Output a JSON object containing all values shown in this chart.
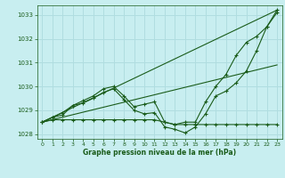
{
  "title": "Graphe pression niveau de la mer (hPa)",
  "bg_color": "#c8eef0",
  "grid_color": "#b0dde0",
  "line_color": "#1a5c1a",
  "xlim": [
    -0.5,
    23.5
  ],
  "ylim": [
    1027.8,
    1033.4
  ],
  "yticks": [
    1028,
    1029,
    1030,
    1031,
    1032,
    1033
  ],
  "xticks": [
    0,
    1,
    2,
    3,
    4,
    5,
    6,
    7,
    8,
    9,
    10,
    11,
    12,
    13,
    14,
    15,
    16,
    17,
    18,
    19,
    20,
    21,
    22,
    23
  ],
  "series": [
    {
      "x": [
        0,
        1,
        2,
        3,
        4,
        5,
        6,
        7,
        8,
        9,
        10,
        11,
        12,
        13,
        14,
        15,
        16,
        17,
        18,
        19,
        20,
        21,
        22,
        23
      ],
      "y": [
        1028.5,
        1028.6,
        1028.6,
        1028.6,
        1028.6,
        1028.6,
        1028.6,
        1028.6,
        1028.6,
        1028.6,
        1028.6,
        1028.6,
        1028.5,
        1028.4,
        1028.4,
        1028.4,
        1028.4,
        1028.4,
        1028.4,
        1028.4,
        1028.4,
        1028.4,
        1028.4,
        1028.4
      ],
      "marker": true
    },
    {
      "x": [
        0,
        1,
        2,
        3,
        4,
        5,
        6,
        7,
        8,
        9,
        10,
        11,
        12,
        13,
        14,
        15,
        16,
        17,
        18,
        19,
        20,
        21,
        22,
        23
      ],
      "y": [
        1028.5,
        1028.7,
        1028.8,
        1029.2,
        1029.3,
        1029.5,
        1029.75,
        1029.9,
        1029.45,
        1029.0,
        1028.85,
        1028.9,
        1028.3,
        1028.2,
        1028.05,
        1028.3,
        1028.85,
        1029.6,
        1029.8,
        1030.15,
        1030.65,
        1031.5,
        1032.5,
        1033.1
      ],
      "marker": true
    },
    {
      "x": [
        0,
        1,
        2,
        3,
        4,
        5,
        6,
        7,
        8,
        9,
        10,
        11,
        12,
        13,
        14,
        15,
        16,
        17,
        18,
        19,
        20,
        21,
        22,
        23
      ],
      "y": [
        1028.5,
        1028.7,
        1028.9,
        1029.2,
        1029.4,
        1029.6,
        1029.9,
        1030.0,
        1029.6,
        1029.15,
        1029.25,
        1029.35,
        1028.5,
        1028.4,
        1028.5,
        1028.5,
        1029.35,
        1030.0,
        1030.5,
        1031.3,
        1031.85,
        1032.1,
        1032.5,
        1033.2
      ],
      "marker": true
    },
    {
      "x": [
        0,
        23
      ],
      "y": [
        1028.5,
        1033.2
      ],
      "marker": false
    },
    {
      "x": [
        0,
        23
      ],
      "y": [
        1028.5,
        1030.9
      ],
      "marker": false
    }
  ]
}
